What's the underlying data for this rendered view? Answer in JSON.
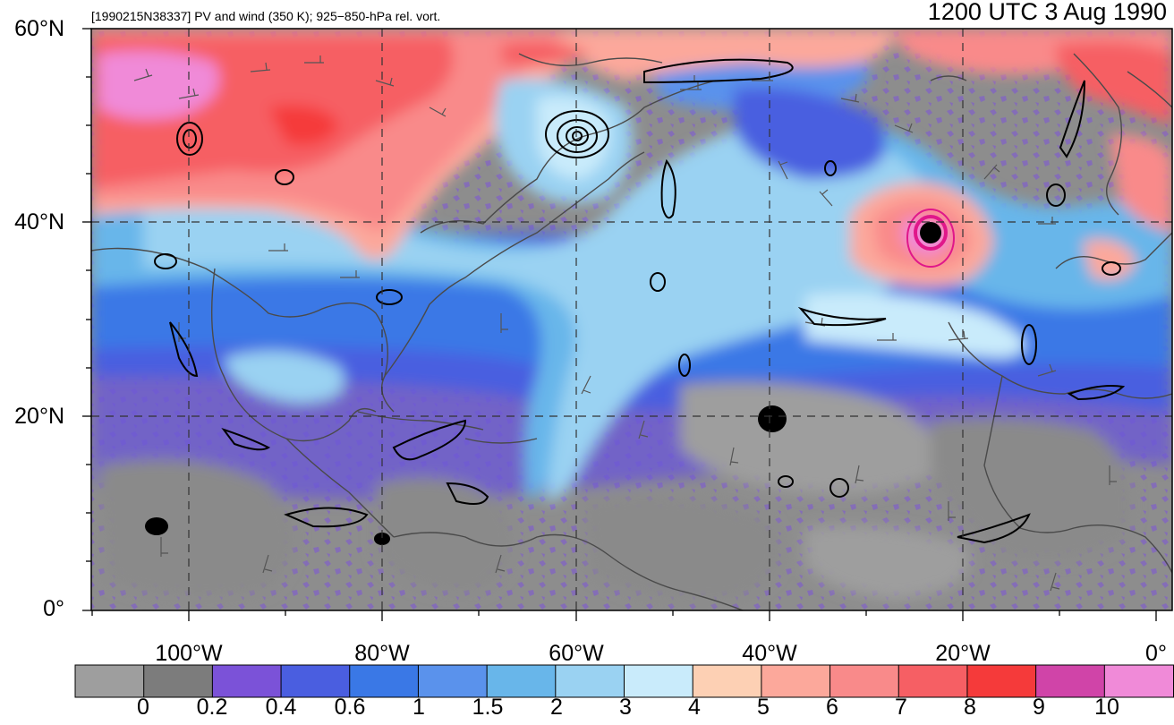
{
  "header": {
    "subtitle": "[1990215N38337] PV and wind (350 K); 925−850-hPa rel. vort.",
    "valid_time": "1200 UTC 3 Aug 1990"
  },
  "axes": {
    "lat_ticks": [
      "60°N",
      "40°N",
      "20°N",
      "0°"
    ],
    "lon_ticks": [
      "100°W",
      "80°W",
      "60°W",
      "40°W",
      "20°W",
      "0°"
    ],
    "lat_range": [
      0,
      60
    ],
    "lon_range": [
      -110,
      0
    ],
    "grid": "dashed"
  },
  "colorbar": {
    "labels": [
      "0",
      "0.2",
      "0.4",
      "0.6",
      "1",
      "1.5",
      "2",
      "3",
      "4",
      "5",
      "6",
      "7",
      "8",
      "9",
      "10"
    ],
    "colors": [
      "#9e9e9e",
      "#7c7c7c",
      "#7b52d8",
      "#4a5ee0",
      "#3a78e6",
      "#5a92ec",
      "#68b6ea",
      "#9ad2f2",
      "#c9ebfb",
      "#fdd0b4",
      "#fca89b",
      "#f98a8a",
      "#f65f64",
      "#f53a3a",
      "#d044a8",
      "#f08ad8"
    ]
  },
  "map": {
    "colors": {
      "land_border": "#4a4a4a",
      "vorticity_contour": "#000000",
      "storm_contour": "#e0178a"
    },
    "features": [
      "pv-shading",
      "wind-barbs",
      "vorticity-contours",
      "coastlines"
    ]
  }
}
